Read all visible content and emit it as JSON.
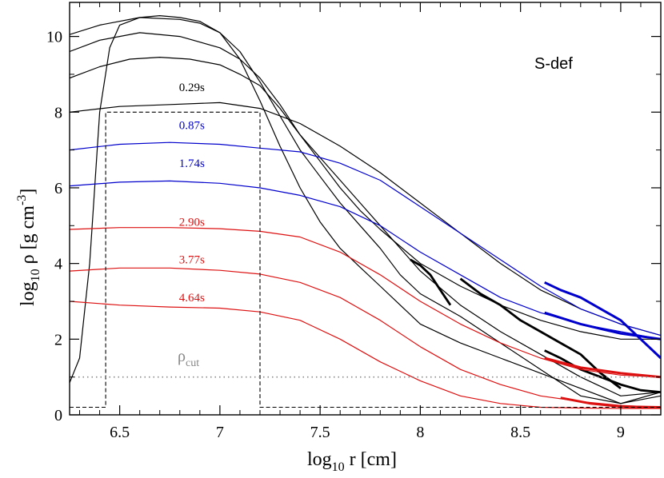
{
  "chart_data": {
    "type": "line",
    "title": "S-def",
    "xlabel": "log",
    "xlabel_sub": "10",
    "xlabel_rest": " r [cm]",
    "ylabel": "log",
    "ylabel_sub": "10",
    "ylabel_mid": " ρ [g cm",
    "ylabel_sup": "-3",
    "ylabel_end": "]",
    "xlim": [
      6.25,
      9.2
    ],
    "ylim": [
      0,
      10.9
    ],
    "xticks": [
      6.5,
      7,
      7.5,
      8,
      8.5,
      9
    ],
    "xtick_labels": [
      "6.5",
      "7",
      "7.5",
      "8",
      "8.5",
      "9"
    ],
    "yticks": [
      0,
      2,
      4,
      6,
      8,
      10
    ],
    "ytick_labels": [
      "0",
      "2",
      "4",
      "6",
      "8",
      "10"
    ],
    "grid": false,
    "cut_label": "ρ",
    "cut_label_sub": "cut",
    "cut_value": 1.0,
    "colors": {
      "black": "#000000",
      "blue": "#0000cc",
      "red": "#dd1111",
      "gray": "#888888"
    },
    "labeled_series": [
      {
        "name": "0.29s",
        "color": "black",
        "label_at": [
          6.86,
          8.55
        ],
        "x": [
          6.25,
          6.5,
          6.75,
          7.0,
          7.2,
          7.4,
          7.6,
          7.8,
          8.0,
          8.2,
          8.4,
          8.6,
          8.8,
          9.0,
          9.2
        ],
        "y": [
          8.0,
          8.15,
          8.2,
          8.25,
          8.1,
          7.7,
          7.1,
          6.4,
          5.6,
          4.8,
          4.0,
          3.3,
          2.8,
          2.4,
          2.1
        ]
      },
      {
        "name": "0.87s",
        "color": "blue",
        "label_at": [
          6.86,
          7.55
        ],
        "x": [
          6.25,
          6.5,
          6.75,
          7.0,
          7.2,
          7.4,
          7.6,
          7.8,
          8.0,
          8.2,
          8.4,
          8.6,
          8.8,
          9.0,
          9.2
        ],
        "y": [
          7.0,
          7.15,
          7.2,
          7.15,
          7.05,
          6.95,
          6.65,
          6.2,
          5.5,
          4.8,
          4.1,
          3.4,
          2.8,
          2.4,
          2.1
        ]
      },
      {
        "name": "1.74s",
        "color": "blue",
        "label_at": [
          6.86,
          6.55
        ],
        "x": [
          6.25,
          6.5,
          6.75,
          7.0,
          7.2,
          7.4,
          7.6,
          7.8,
          8.0,
          8.2,
          8.4,
          8.6,
          8.8,
          9.0,
          9.2
        ],
        "y": [
          6.05,
          6.15,
          6.18,
          6.12,
          6.0,
          5.8,
          5.5,
          5.0,
          4.3,
          3.7,
          3.1,
          2.7,
          2.4,
          2.2,
          2.0
        ]
      },
      {
        "name": "2.90s",
        "color": "red",
        "label_at": [
          6.86,
          5.0
        ],
        "x": [
          6.25,
          6.5,
          6.75,
          7.0,
          7.2,
          7.4,
          7.6,
          7.8,
          8.0,
          8.2,
          8.4,
          8.6,
          8.8,
          9.0,
          9.2
        ],
        "y": [
          4.9,
          4.95,
          4.95,
          4.92,
          4.85,
          4.7,
          4.3,
          3.7,
          3.0,
          2.4,
          1.9,
          1.5,
          1.2,
          1.05,
          1.0
        ]
      },
      {
        "name": "3.77s",
        "color": "red",
        "label_at": [
          6.86,
          4.0
        ],
        "x": [
          6.25,
          6.5,
          6.75,
          7.0,
          7.2,
          7.4,
          7.6,
          7.8,
          8.0,
          8.2,
          8.4,
          8.6,
          8.8,
          9.0,
          9.2
        ],
        "y": [
          3.8,
          3.88,
          3.88,
          3.82,
          3.72,
          3.5,
          3.1,
          2.5,
          1.8,
          1.2,
          0.8,
          0.5,
          0.35,
          0.25,
          0.2
        ]
      },
      {
        "name": "4.64s",
        "color": "red",
        "label_at": [
          6.86,
          3.0
        ],
        "x": [
          6.25,
          6.5,
          6.75,
          7.0,
          7.2,
          7.4,
          7.6,
          7.8,
          8.0,
          8.2,
          8.4,
          8.6,
          8.8,
          9.0,
          9.2
        ],
        "y": [
          3.0,
          2.9,
          2.85,
          2.82,
          2.72,
          2.5,
          2.0,
          1.4,
          0.9,
          0.5,
          0.3,
          0.2,
          0.18,
          0.17,
          0.17
        ]
      }
    ],
    "unlabeled_series": [
      {
        "color": "black",
        "width": 1.2,
        "x": [
          6.25,
          6.3,
          6.35,
          6.4,
          6.45,
          6.5,
          6.6,
          6.7,
          6.8,
          6.9,
          7.0,
          7.1,
          7.2,
          7.3,
          7.4,
          7.5,
          7.6,
          7.7,
          7.8,
          7.9,
          8.0,
          8.2,
          8.4,
          8.6,
          8.8,
          9.0,
          9.2
        ],
        "y": [
          0.85,
          1.5,
          4.0,
          8.0,
          9.7,
          10.3,
          10.5,
          10.55,
          10.5,
          10.4,
          10.1,
          9.4,
          8.3,
          7.1,
          6.0,
          5.1,
          4.4,
          3.9,
          3.4,
          2.9,
          2.4,
          1.9,
          1.5,
          1.1,
          0.7,
          0.3,
          0.5
        ]
      },
      {
        "color": "black",
        "width": 1.2,
        "x": [
          6.25,
          6.4,
          6.6,
          6.8,
          6.9,
          7.0,
          7.1,
          7.2,
          7.3,
          7.4,
          7.5,
          7.6,
          7.7,
          7.8,
          7.9,
          8.0,
          8.2,
          8.4,
          8.6,
          8.8,
          9.0,
          9.2
        ],
        "y": [
          10.05,
          10.3,
          10.5,
          10.45,
          10.35,
          10.1,
          9.6,
          8.8,
          7.9,
          7.0,
          6.3,
          5.6,
          5.0,
          4.4,
          3.7,
          3.2,
          2.6,
          1.9,
          1.2,
          0.5,
          0.3,
          0.6
        ]
      },
      {
        "color": "black",
        "width": 1.2,
        "x": [
          6.25,
          6.4,
          6.6,
          6.8,
          7.0,
          7.1,
          7.2,
          7.3,
          7.4,
          7.5,
          7.6,
          7.7,
          7.8,
          8.0,
          8.2,
          8.4,
          8.6,
          8.8,
          9.0,
          9.2
        ],
        "y": [
          9.6,
          9.9,
          10.1,
          10.0,
          9.7,
          9.4,
          8.9,
          8.2,
          7.4,
          6.8,
          6.2,
          5.6,
          5.0,
          3.8,
          2.9,
          2.2,
          1.6,
          1.0,
          0.5,
          0.6
        ]
      },
      {
        "color": "black",
        "width": 1.2,
        "x": [
          6.25,
          6.4,
          6.55,
          6.7,
          6.85,
          7.0,
          7.1,
          7.2,
          7.3,
          7.4,
          7.5,
          7.6,
          7.7,
          7.8,
          8.0,
          8.2,
          8.4,
          8.6,
          8.8,
          9.0,
          9.2
        ],
        "y": [
          8.9,
          9.2,
          9.4,
          9.45,
          9.4,
          9.25,
          9.0,
          8.7,
          8.1,
          7.4,
          6.7,
          6.0,
          5.4,
          4.9,
          4.0,
          3.4,
          2.9,
          2.5,
          2.2,
          2.0,
          2.0
        ]
      },
      {
        "color": "black",
        "width": 2.8,
        "x": [
          7.95,
          8.0,
          8.05,
          8.1,
          8.15
        ],
        "y": [
          4.1,
          3.95,
          3.7,
          3.3,
          2.9
        ]
      },
      {
        "color": "black",
        "width": 2.8,
        "x": [
          8.2,
          8.3,
          8.4,
          8.5,
          8.6,
          8.7,
          8.8,
          8.9,
          9.0
        ],
        "y": [
          3.6,
          3.2,
          2.9,
          2.5,
          2.2,
          1.9,
          1.6,
          1.1,
          0.7
        ]
      },
      {
        "color": "black",
        "width": 2.8,
        "x": [
          8.62,
          8.7,
          8.8,
          8.9,
          9.0,
          9.1,
          9.2
        ],
        "y": [
          1.7,
          1.5,
          1.2,
          1.0,
          0.8,
          0.65,
          0.6
        ]
      },
      {
        "color": "blue",
        "width": 3.0,
        "x": [
          8.62,
          8.7,
          8.8,
          8.9,
          9.0,
          9.1,
          9.2
        ],
        "y": [
          3.5,
          3.3,
          3.1,
          2.8,
          2.5,
          2.0,
          1.5
        ]
      },
      {
        "color": "blue",
        "width": 3.0,
        "x": [
          8.62,
          8.8,
          9.0,
          9.2
        ],
        "y": [
          2.7,
          2.4,
          2.15,
          2.0
        ]
      },
      {
        "color": "red",
        "width": 3.0,
        "x": [
          8.62,
          8.8,
          9.0,
          9.2
        ],
        "y": [
          1.5,
          1.25,
          1.1,
          1.0
        ]
      },
      {
        "color": "red",
        "width": 3.0,
        "x": [
          8.7,
          8.85,
          9.0,
          9.2
        ],
        "y": [
          0.45,
          0.3,
          0.22,
          0.2
        ]
      }
    ],
    "dashed_series": [
      {
        "color": "black",
        "x": [
          6.25,
          6.41,
          6.43,
          6.43,
          7.19,
          7.2,
          7.2,
          9.2
        ],
        "y": [
          0.2,
          0.2,
          0.2,
          8.0,
          8.0,
          8.0,
          0.2,
          0.2
        ]
      }
    ]
  }
}
